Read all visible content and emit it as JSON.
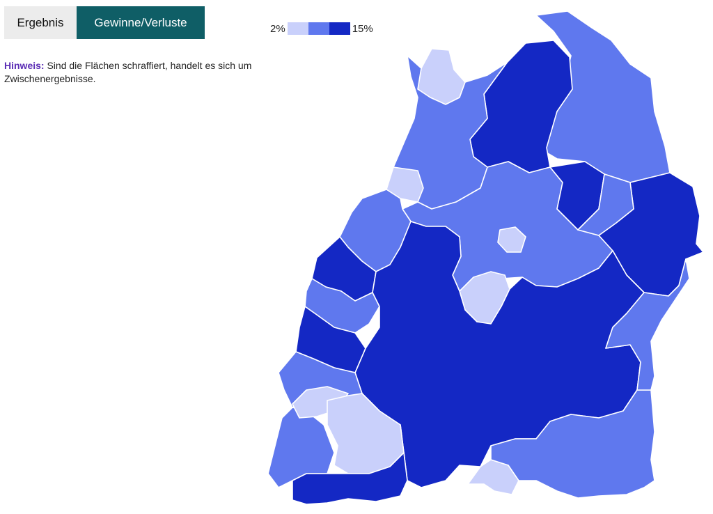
{
  "tabs": [
    {
      "label": "Ergebnis",
      "active": false
    },
    {
      "label": "Gewinne/Verluste",
      "active": true
    }
  ],
  "note": {
    "label": "Hinweis:",
    "text": " Sind die Flächen schraffiert, handelt es sich um Zwischenergebnisse."
  },
  "legend": {
    "min_label": "2%",
    "max_label": "15%",
    "colors": [
      "#c9d0fb",
      "#5f78ee",
      "#1428c4"
    ]
  },
  "colors": {
    "tab_active_bg": "#0f5e66",
    "tab_inactive_bg": "#ececec",
    "note_label": "#5b2db5"
  }
}
